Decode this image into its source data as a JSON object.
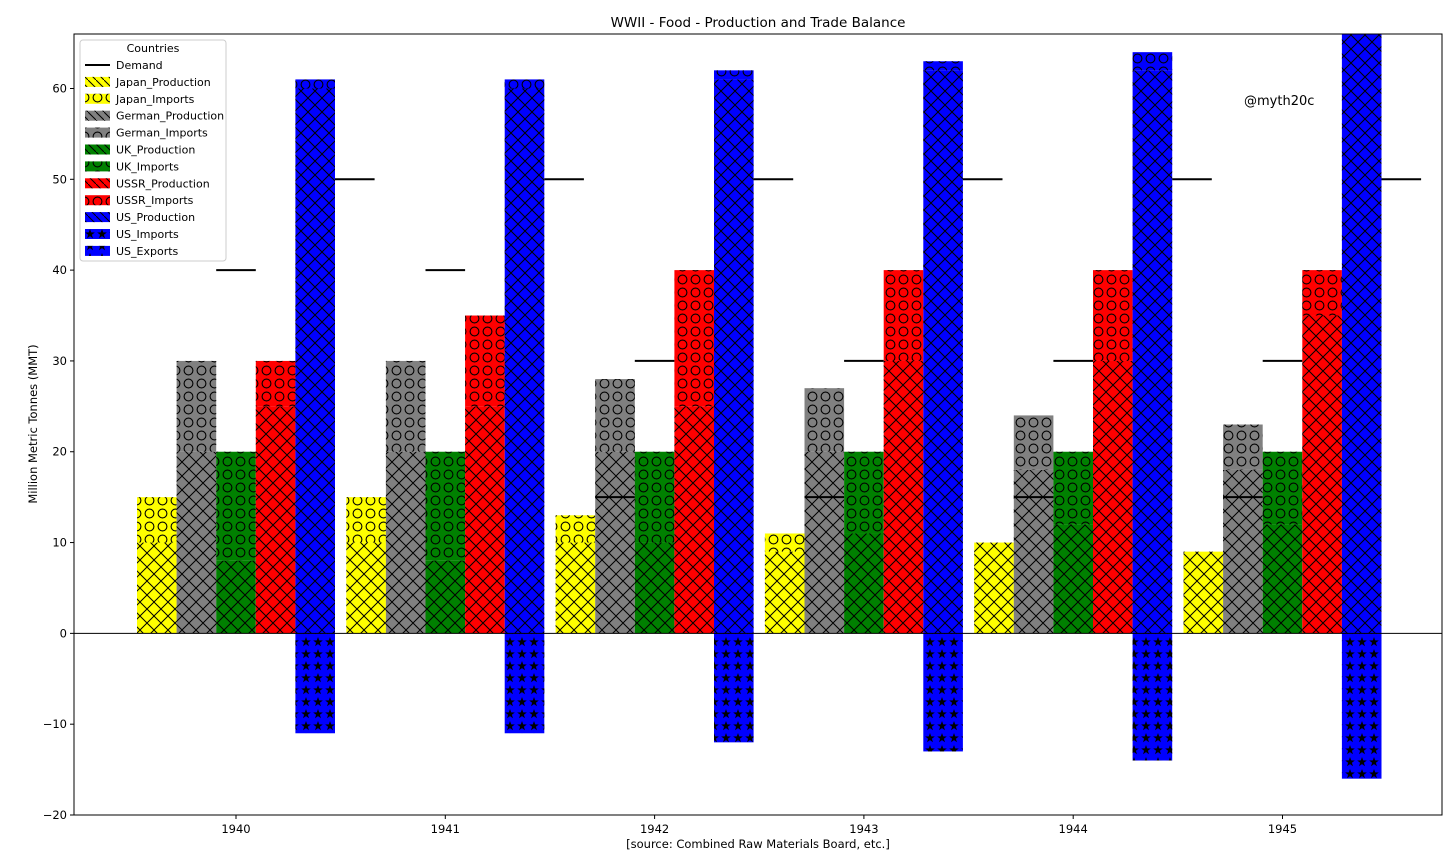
{
  "chart_data": {
    "type": "bar",
    "title": "WWII - Food - Production and Trade Balance",
    "xlabel": "[source: Combined Raw Materials Board, etc.]",
    "ylabel": "Million Metric Tonnes (MMT)",
    "annotation": "@myth20c",
    "categories": [
      "1940",
      "1941",
      "1942",
      "1943",
      "1944",
      "1945"
    ],
    "ylim": [
      -20,
      66
    ],
    "yticks": [
      -20,
      -10,
      0,
      10,
      20,
      30,
      40,
      50,
      60
    ],
    "grid": false,
    "legend": {
      "title": "Countries",
      "placement": "top-left"
    },
    "countries": [
      {
        "key": "japan",
        "color": "#ffff00",
        "production": [
          10,
          10,
          10,
          9,
          10,
          9
        ],
        "imports": [
          5,
          5,
          3,
          2,
          0,
          0
        ],
        "demand": [
          null,
          null,
          15,
          15,
          15,
          15
        ]
      },
      {
        "key": "german",
        "color": "#808080",
        "production": [
          20,
          20,
          20,
          20,
          18,
          18
        ],
        "imports": [
          10,
          10,
          8,
          7,
          6,
          5
        ],
        "demand": [
          40,
          40,
          30,
          30,
          30,
          30
        ]
      },
      {
        "key": "uk",
        "color": "#008000",
        "production": [
          8,
          8,
          10,
          11,
          12,
          12
        ],
        "imports": [
          12,
          12,
          10,
          9,
          8,
          8
        ],
        "demand": [
          null,
          null,
          null,
          null,
          null,
          null
        ]
      },
      {
        "key": "ussr",
        "color": "#ff0000",
        "production": [
          25,
          25,
          25,
          30,
          30,
          35
        ],
        "imports": [
          5,
          10,
          15,
          10,
          10,
          5
        ],
        "demand": [
          null,
          null,
          null,
          null,
          null,
          null
        ]
      },
      {
        "key": "us",
        "color": "#0000ff",
        "production": [
          60,
          60,
          61,
          62,
          62,
          66
        ],
        "imports": [
          1,
          1,
          1,
          1,
          2,
          2
        ],
        "exports": [
          -11,
          -11,
          -12,
          -13,
          -14,
          -16
        ],
        "demand": [
          50,
          50,
          50,
          50,
          50,
          50
        ]
      }
    ],
    "legend_entries": [
      {
        "label": "Demand",
        "kind": "line",
        "color": "#000000"
      },
      {
        "label": "Japan_Production",
        "kind": "patch",
        "color": "#ffff00",
        "pattern": "diag"
      },
      {
        "label": "Japan_Imports",
        "kind": "patch",
        "color": "#ffff00",
        "pattern": "circle"
      },
      {
        "label": "German_Production",
        "kind": "patch",
        "color": "#808080",
        "pattern": "diag"
      },
      {
        "label": "German_Imports",
        "kind": "patch",
        "color": "#808080",
        "pattern": "circle"
      },
      {
        "label": "UK_Production",
        "kind": "patch",
        "color": "#008000",
        "pattern": "diag"
      },
      {
        "label": "UK_Imports",
        "kind": "patch",
        "color": "#008000",
        "pattern": "circle"
      },
      {
        "label": "USSR_Production",
        "kind": "patch",
        "color": "#ff0000",
        "pattern": "diag"
      },
      {
        "label": "USSR_Imports",
        "kind": "patch",
        "color": "#ff0000",
        "pattern": "circle"
      },
      {
        "label": "US_Production",
        "kind": "patch",
        "color": "#0000ff",
        "pattern": "diag"
      },
      {
        "label": "US_Imports",
        "kind": "patch",
        "color": "#0000ff",
        "pattern": "star"
      },
      {
        "label": "US_Exports",
        "kind": "patch",
        "color": "#0000ff",
        "pattern": "star"
      }
    ]
  }
}
